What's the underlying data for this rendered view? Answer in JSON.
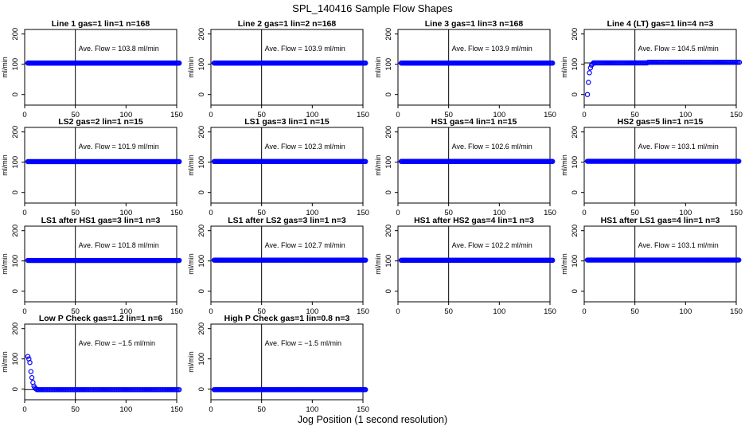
{
  "figure": {
    "title": "SPL_140416  Sample Flow Shapes",
    "xlabel": "Jog Position (1 second resolution)"
  },
  "chart_data": [
    {
      "type": "scatter",
      "title": "Line 1 gas=1 lin=1 n=168",
      "ylabel": "ml/min",
      "annotation": "Ave. Flow = 103.8  ml/min",
      "xlim": [
        0,
        150
      ],
      "ylim": [
        -35,
        215
      ],
      "xticks": [
        0,
        50,
        100,
        150
      ],
      "yticks": [
        0,
        100,
        200
      ],
      "vline": 50,
      "hline": 103.8,
      "shape": "flat",
      "level": 103.8
    },
    {
      "type": "scatter",
      "title": "Line 2 gas=1 lin=2 n=168",
      "ylabel": "ml/min",
      "annotation": "Ave. Flow = 103.9  ml/min",
      "xlim": [
        0,
        150
      ],
      "ylim": [
        -35,
        215
      ],
      "xticks": [
        0,
        50,
        100,
        150
      ],
      "yticks": [
        0,
        100,
        200
      ],
      "vline": 50,
      "hline": 103.9,
      "shape": "flat",
      "level": 103.9
    },
    {
      "type": "scatter",
      "title": "Line 3 gas=1 lin=3 n=168",
      "ylabel": "ml/min",
      "annotation": "Ave. Flow = 103.9  ml/min",
      "xlim": [
        0,
        150
      ],
      "ylim": [
        -35,
        215
      ],
      "xticks": [
        0,
        50,
        100,
        150
      ],
      "yticks": [
        0,
        100,
        200
      ],
      "vline": 50,
      "hline": 103.9,
      "shape": "flat",
      "level": 103.9
    },
    {
      "type": "scatter",
      "title": "Line 4 (LT) gas=1 lin=4 n=3",
      "ylabel": "ml/min",
      "annotation": "Ave. Flow = 104.5  ml/min",
      "xlim": [
        0,
        150
      ],
      "ylim": [
        -35,
        215
      ],
      "xticks": [
        0,
        50,
        100,
        150
      ],
      "yticks": [
        0,
        100,
        200
      ],
      "vline": 50,
      "hline": 104.5,
      "shape": "rise",
      "level": 104.5
    },
    {
      "type": "scatter",
      "title": "LS2 gas=2 lin=1 n=15",
      "ylabel": "ml/min",
      "annotation": "Ave. Flow = 101.9  ml/min",
      "xlim": [
        0,
        150
      ],
      "ylim": [
        -35,
        215
      ],
      "xticks": [
        0,
        50,
        100,
        150
      ],
      "yticks": [
        0,
        100,
        200
      ],
      "vline": 50,
      "hline": 101.9,
      "shape": "flat",
      "level": 101.9
    },
    {
      "type": "scatter",
      "title": "LS1 gas=3 lin=1 n=15",
      "ylabel": "ml/min",
      "annotation": "Ave. Flow = 102.3  ml/min",
      "xlim": [
        0,
        150
      ],
      "ylim": [
        -35,
        215
      ],
      "xticks": [
        0,
        50,
        100,
        150
      ],
      "yticks": [
        0,
        100,
        200
      ],
      "vline": 50,
      "hline": 102.3,
      "shape": "flat",
      "level": 102.3
    },
    {
      "type": "scatter",
      "title": "HS1 gas=4 lin=1 n=15",
      "ylabel": "ml/min",
      "annotation": "Ave. Flow = 102.6  ml/min",
      "xlim": [
        0,
        150
      ],
      "ylim": [
        -35,
        215
      ],
      "xticks": [
        0,
        50,
        100,
        150
      ],
      "yticks": [
        0,
        100,
        200
      ],
      "vline": 50,
      "hline": 102.6,
      "shape": "flat",
      "level": 102.6
    },
    {
      "type": "scatter",
      "title": "HS2 gas=5 lin=1 n=15",
      "ylabel": "ml/min",
      "annotation": "Ave. Flow = 103.1  ml/min",
      "xlim": [
        0,
        150
      ],
      "ylim": [
        -35,
        215
      ],
      "xticks": [
        0,
        50,
        100,
        150
      ],
      "yticks": [
        0,
        100,
        200
      ],
      "vline": 50,
      "hline": 103.1,
      "shape": "flat",
      "level": 103.1
    },
    {
      "type": "scatter",
      "title": "LS1 after HS1 gas=3 lin=1 n=3",
      "ylabel": "ml/min",
      "annotation": "Ave. Flow = 101.8  ml/min",
      "xlim": [
        0,
        150
      ],
      "ylim": [
        -35,
        215
      ],
      "xticks": [
        0,
        50,
        100,
        150
      ],
      "yticks": [
        0,
        100,
        200
      ],
      "vline": 50,
      "hline": 101.8,
      "shape": "flat",
      "level": 101.8
    },
    {
      "type": "scatter",
      "title": "LS1 after LS2 gas=3 lin=1 n=3",
      "ylabel": "ml/min",
      "annotation": "Ave. Flow = 102.7  ml/min",
      "xlim": [
        0,
        150
      ],
      "ylim": [
        -35,
        215
      ],
      "xticks": [
        0,
        50,
        100,
        150
      ],
      "yticks": [
        0,
        100,
        200
      ],
      "vline": 50,
      "hline": 102.7,
      "shape": "flat",
      "level": 102.7
    },
    {
      "type": "scatter",
      "title": "HS1 after HS2 gas=4 lin=1 n=3",
      "ylabel": "ml/min",
      "annotation": "Ave. Flow = 102.2  ml/min",
      "xlim": [
        0,
        150
      ],
      "ylim": [
        -35,
        215
      ],
      "xticks": [
        0,
        50,
        100,
        150
      ],
      "yticks": [
        0,
        100,
        200
      ],
      "vline": 50,
      "hline": 102.2,
      "shape": "flat",
      "level": 102.2
    },
    {
      "type": "scatter",
      "title": "HS1 after LS1 gas=4 lin=1 n=3",
      "ylabel": "ml/min",
      "annotation": "Ave. Flow = 103.1  ml/min",
      "xlim": [
        0,
        150
      ],
      "ylim": [
        -35,
        215
      ],
      "xticks": [
        0,
        50,
        100,
        150
      ],
      "yticks": [
        0,
        100,
        200
      ],
      "vline": 50,
      "hline": 103.1,
      "shape": "flat",
      "level": 103.1
    },
    {
      "type": "scatter",
      "title": "Low P Check gas=1.2 lin=1 n=6",
      "ylabel": "ml/min",
      "annotation": "Ave. Flow = −1.5  ml/min",
      "xlim": [
        0,
        150
      ],
      "ylim": [
        -35,
        215
      ],
      "xticks": [
        0,
        50,
        100,
        150
      ],
      "yticks": [
        0,
        100,
        200
      ],
      "vline": 50,
      "hline": -1.5,
      "shape": "decay",
      "level": -1.5
    },
    {
      "type": "scatter",
      "title": "High P Check gas=1 lin=0.8 n=3",
      "ylabel": "ml/min",
      "annotation": "Ave. Flow = −1.5  ml/min",
      "xlim": [
        0,
        150
      ],
      "ylim": [
        -35,
        215
      ],
      "xticks": [
        0,
        50,
        100,
        150
      ],
      "yticks": [
        0,
        100,
        200
      ],
      "vline": 50,
      "hline": -1.5,
      "shape": "flat",
      "level": -1.5
    }
  ],
  "style": {
    "point_color": "#0000ff",
    "line_color": "#000000"
  }
}
